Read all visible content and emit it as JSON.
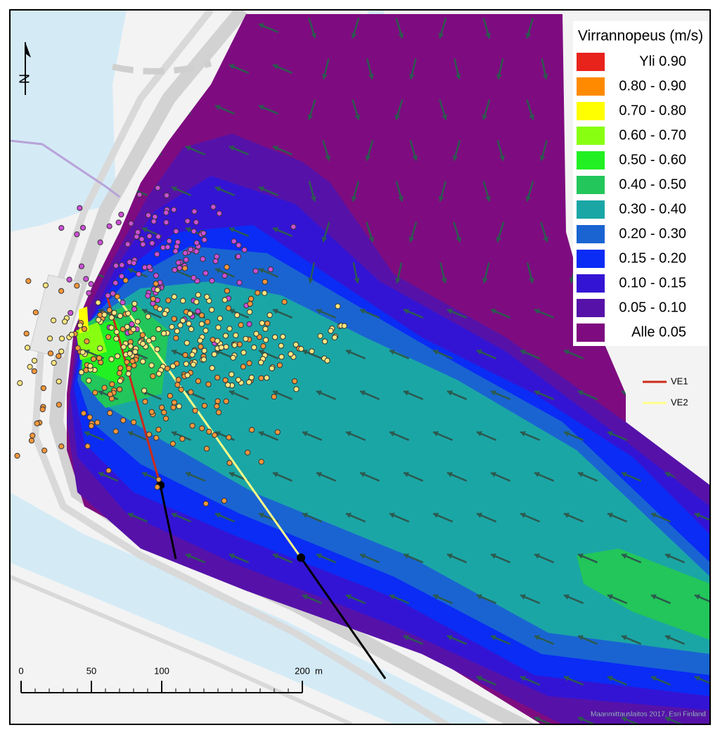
{
  "legend": {
    "title": "Virrannopeus (m/s)",
    "items": [
      {
        "label": "Yli 0.90",
        "color": "#e8231c"
      },
      {
        "label": "0.80 - 0.90",
        "color": "#ff8a00"
      },
      {
        "label": "0.70 - 0.80",
        "color": "#ffff00"
      },
      {
        "label": "0.60 - 0.70",
        "color": "#88ff11"
      },
      {
        "label": "0.50 - 0.60",
        "color": "#22f022"
      },
      {
        "label": "0.40 - 0.50",
        "color": "#22c65a"
      },
      {
        "label": "0.30 - 0.40",
        "color": "#1ba6a6"
      },
      {
        "label": "0.20 - 0.30",
        "color": "#1a64d2"
      },
      {
        "label": "0.15 - 0.20",
        "color": "#0a2cf5"
      },
      {
        "label": "0.10 - 0.15",
        "color": "#3414d4"
      },
      {
        "label": "0.05 - 0.10",
        "color": "#5612a8"
      },
      {
        "label": "Alle 0.05",
        "color": "#7e0c80"
      }
    ]
  },
  "routes": [
    {
      "label": "VE1",
      "color": "#cc2a1a"
    },
    {
      "label": "VE2",
      "color": "#ffff88"
    }
  ],
  "scale_bar": {
    "ticks": [
      0,
      50,
      100,
      200
    ],
    "unit": "m"
  },
  "north_label": "N",
  "attribution": "Maanmittauslaitos 2017, Esri Finland"
}
